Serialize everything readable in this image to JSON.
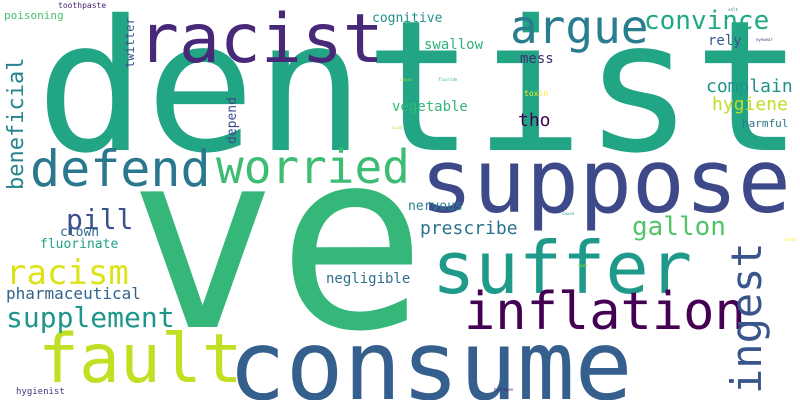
{
  "words": {
    "ve": {
      "text": "ve",
      "color": "#35b779"
    },
    "dentist": {
      "text": "dentist",
      "color": "#21a585"
    },
    "consume": {
      "text": "consume",
      "color": "#355f8d"
    },
    "suppose": {
      "text": "suppose",
      "color": "#3e4989"
    },
    "racist": {
      "text": "racist",
      "color": "#482878"
    },
    "suffer": {
      "text": "suffer",
      "color": "#1f9a8a"
    },
    "fault": {
      "text": "fault",
      "color": "#c2df23"
    },
    "inflation": {
      "text": "inflation",
      "color": "#440154"
    },
    "defend": {
      "text": "defend",
      "color": "#2a788e"
    },
    "worried": {
      "text": "worried",
      "color": "#3dbc74"
    },
    "argue": {
      "text": "argue",
      "color": "#287d8e"
    },
    "ingest": {
      "text": "ingest",
      "color": "#39568c"
    },
    "convince": {
      "text": "convince",
      "color": "#22a884"
    },
    "racism": {
      "text": "racism",
      "color": "#dde318"
    },
    "supplement": {
      "text": "supplement",
      "color": "#1f968b"
    },
    "beneficial": {
      "text": "beneficial",
      "color": "#25848e"
    },
    "pill": {
      "text": "pill",
      "color": "#3b518b"
    },
    "gallon": {
      "text": "gallon",
      "color": "#52c569"
    },
    "complain": {
      "text": "complain",
      "color": "#20928c"
    },
    "hygiene": {
      "text": "hygiene",
      "color": "#bddf26"
    },
    "pharmaceutical": {
      "text": "pharmaceutical",
      "color": "#33638d"
    },
    "prescribe": {
      "text": "prescribe",
      "color": "#2c728e"
    },
    "tho": {
      "text": "tho",
      "color": "#440154"
    },
    "fluorinate": {
      "text": "fluorinate",
      "color": "#1fa187"
    },
    "negligible": {
      "text": "negligible",
      "color": "#2d708e"
    },
    "clown": {
      "text": "clown",
      "color": "#31688e"
    },
    "nervous": {
      "text": "nervous",
      "color": "#25848e"
    },
    "vegetable": {
      "text": "vegetable",
      "color": "#34b679"
    },
    "swallow": {
      "text": "swallow",
      "color": "#2db27d"
    },
    "mess": {
      "text": "mess",
      "color": "#472c7a"
    },
    "cognitive": {
      "text": "cognitive",
      "color": "#21908d"
    },
    "rely": {
      "text": "rely",
      "color": "#39568c"
    },
    "depend": {
      "text": "depend",
      "color": "#3e4a89"
    },
    "harmful": {
      "text": "harmful",
      "color": "#2a778e"
    },
    "twitter": {
      "text": "twitter",
      "color": "#3b528b"
    },
    "poisoning": {
      "text": "poisoning",
      "color": "#4ac16d"
    },
    "toothpaste": {
      "text": "toothpaste",
      "color": "#481f70"
    },
    "hygienist": {
      "text": "hygienist",
      "color": "#46337f"
    },
    "toxin": {
      "text": "toxin",
      "color": "#fde725"
    },
    "tiny1": {
      "text": "cause",
      "color": "#a8db34"
    },
    "tiny2": {
      "text": "eyewear",
      "color": "#3e4989"
    },
    "tiny3": {
      "text": "fluoride",
      "color": "#3dbc74"
    },
    "tiny4": {
      "text": "acid",
      "color": "#b5de2b"
    },
    "tiny5": {
      "text": "bone",
      "color": "#a0da39"
    },
    "tiny6": {
      "text": "hydrogen",
      "color": "#482878"
    },
    "tiny7": {
      "text": "cause",
      "color": "#20a486"
    },
    "tiny8": {
      "text": "tooth",
      "color": "#fde725"
    },
    "tiny9": {
      "text": "salt",
      "color": "#2a788e"
    }
  }
}
